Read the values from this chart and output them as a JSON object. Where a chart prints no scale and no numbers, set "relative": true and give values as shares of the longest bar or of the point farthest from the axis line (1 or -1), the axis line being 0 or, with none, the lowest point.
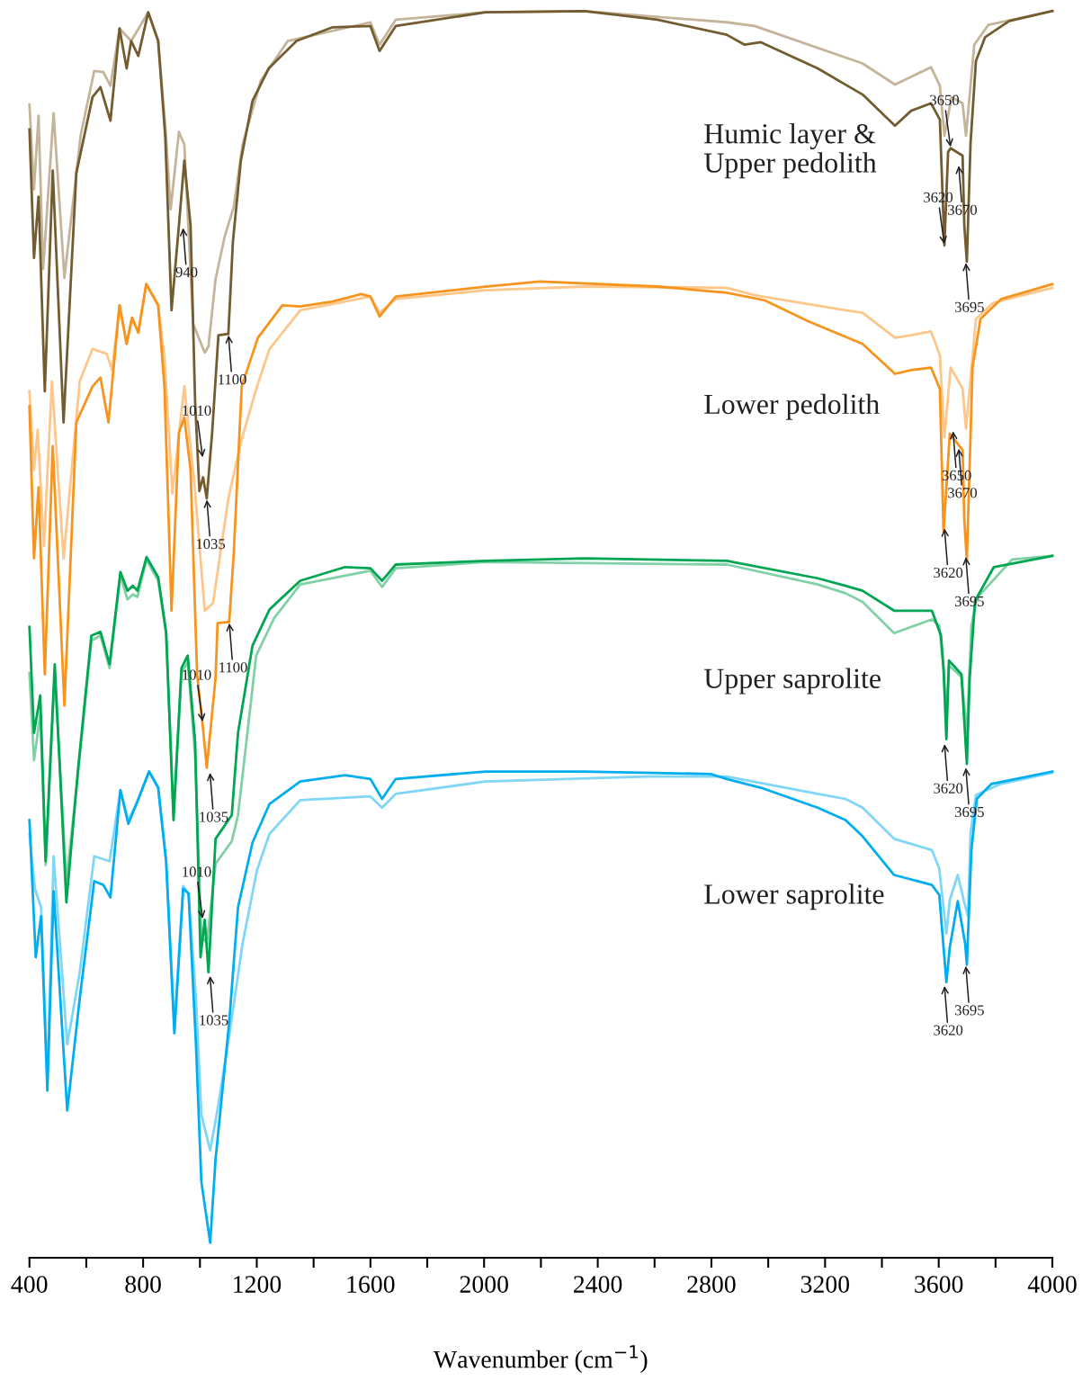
{
  "chart_data": {
    "type": "line",
    "relative": true,
    "xlabel": "Wavenumber (cm$^{−1}$)",
    "xlim": [
      400,
      4000
    ],
    "xticks": [
      400,
      {
        "value": 600,
        "label": null
      },
      800,
      {
        "value": 1000,
        "label": null
      },
      1200,
      {
        "value": 1400,
        "label": null
      },
      1600,
      {
        "value": 1800,
        "label": null
      },
      2000,
      {
        "value": 2200,
        "label": null
      },
      2400,
      {
        "value": 2600,
        "label": null
      },
      2800,
      {
        "value": 3000,
        "label": null
      },
      3200,
      {
        "value": 3400,
        "label": null
      },
      3600,
      {
        "value": 3800,
        "label": null
      },
      4000
    ],
    "grid": false,
    "line_style": "solid",
    "series": [
      {
        "color": "#c4b49a",
        "x": [
          400,
          416,
          432,
          448,
          485,
          523,
          580,
          628,
          660,
          685,
          717,
          758,
          818,
          853,
          878,
          897,
          926,
          945,
          976,
          1017,
          1030,
          1055,
          1087,
          1119,
          1150,
          1214,
          1309,
          1600,
          1632,
          1689,
          2005,
          2354,
          2854,
          2952,
          3332,
          3446,
          3573,
          3604,
          3620,
          3645,
          3684,
          3696,
          3725,
          3775,
          4000
        ],
        "values": [
          0.925,
          0.857,
          0.916,
          0.793,
          0.918,
          0.786,
          0.9,
          0.952,
          0.951,
          0.94,
          0.986,
          0.976,
          0.999,
          0.976,
          0.908,
          0.841,
          0.903,
          0.893,
          0.749,
          0.726,
          0.731,
          0.785,
          0.819,
          0.843,
          0.893,
          0.944,
          0.976,
          0.991,
          0.973,
          0.993,
          0.999,
          1.0,
          0.991,
          0.988,
          0.958,
          0.941,
          0.955,
          0.94,
          0.9,
          0.931,
          0.926,
          0.9,
          0.973,
          0.989,
          1.0
        ]
      },
      {
        "name": "Humic layer &\nUpper pedolith",
        "color": "#725c30",
        "x": [
          400,
          416,
          432,
          454,
          482,
          520,
          565,
          622,
          650,
          685,
          717,
          742,
          758,
          783,
          818,
          853,
          878,
          900,
          926,
          945,
          967,
          983,
          998,
          1011,
          1024,
          1043,
          1065,
          1100,
          1116,
          1144,
          1185,
          1242,
          1340,
          1467,
          1600,
          1632,
          1689,
          2005,
          2354,
          2610,
          2854,
          2917,
          2974,
          3174,
          3332,
          3446,
          3503,
          3573,
          3604,
          3620,
          3633,
          3642,
          3684,
          3690,
          3699,
          3712,
          3731,
          3763,
          3848,
          4000
        ],
        "values": [
          0.905,
          0.802,
          0.851,
          0.695,
          0.872,
          0.67,
          0.87,
          0.931,
          0.939,
          0.912,
          0.986,
          0.954,
          0.976,
          0.964,
          0.999,
          0.976,
          0.899,
          0.76,
          0.828,
          0.88,
          0.828,
          0.687,
          0.615,
          0.626,
          0.609,
          0.662,
          0.74,
          0.741,
          0.815,
          0.88,
          0.928,
          0.954,
          0.976,
          0.987,
          0.988,
          0.968,
          0.988,
          0.999,
          1.0,
          0.993,
          0.981,
          0.973,
          0.975,
          0.954,
          0.933,
          0.908,
          0.92,
          0.926,
          0.913,
          0.812,
          0.887,
          0.89,
          0.884,
          0.828,
          0.799,
          0.894,
          0.96,
          0.979,
          0.992,
          1.0
        ]
      },
      {
        "color": "#fdc68a",
        "x": [
          400,
          416,
          429,
          451,
          479,
          520,
          577,
          622,
          672,
          691,
          717,
          742,
          761,
          783,
          811,
          853,
          875,
          903,
          945,
          980,
          1017,
          1046,
          1100,
          1144,
          1201,
          1245,
          1353,
          1600,
          1632,
          1689,
          2005,
          2354,
          2854,
          2952,
          3272,
          3332,
          3446,
          3503,
          3573,
          3604,
          3620,
          3642,
          3684,
          3696,
          3731,
          3792,
          4000
        ],
        "values": [
          0.695,
          0.632,
          0.664,
          0.571,
          0.703,
          0.561,
          0.703,
          0.729,
          0.725,
          0.712,
          0.764,
          0.733,
          0.754,
          0.742,
          0.781,
          0.764,
          0.722,
          0.613,
          0.699,
          0.622,
          0.519,
          0.525,
          0.609,
          0.654,
          0.699,
          0.729,
          0.76,
          0.771,
          0.758,
          0.769,
          0.776,
          0.779,
          0.778,
          0.772,
          0.76,
          0.758,
          0.738,
          0.74,
          0.743,
          0.724,
          0.658,
          0.714,
          0.697,
          0.665,
          0.753,
          0.766,
          0.778
        ]
      },
      {
        "name": "Lower pedolith",
        "color": "#f7941d",
        "x": [
          400,
          416,
          432,
          454,
          482,
          523,
          565,
          622,
          650,
          678,
          717,
          742,
          761,
          783,
          811,
          853,
          875,
          900,
          926,
          945,
          967,
          990,
          1011,
          1024,
          1055,
          1062,
          1103,
          1119,
          1147,
          1204,
          1290,
          1353,
          1467,
          1568,
          1600,
          1632,
          1689,
          2005,
          2196,
          2610,
          2854,
          2987,
          3142,
          3332,
          3446,
          3503,
          3573,
          3604,
          3617,
          3639,
          3684,
          3690,
          3699,
          3719,
          3747,
          3820,
          4000
        ],
        "values": [
          0.683,
          0.561,
          0.618,
          0.468,
          0.651,
          0.443,
          0.67,
          0.699,
          0.706,
          0.67,
          0.764,
          0.733,
          0.754,
          0.742,
          0.781,
          0.764,
          0.699,
          0.519,
          0.662,
          0.674,
          0.632,
          0.468,
          0.424,
          0.393,
          0.465,
          0.509,
          0.51,
          0.565,
          0.699,
          0.738,
          0.764,
          0.763,
          0.767,
          0.773,
          0.771,
          0.755,
          0.771,
          0.779,
          0.783,
          0.779,
          0.774,
          0.768,
          0.751,
          0.733,
          0.709,
          0.712,
          0.714,
          0.697,
          0.582,
          0.661,
          0.648,
          0.592,
          0.559,
          0.714,
          0.753,
          0.769,
          0.781
        ]
      },
      {
        "color": "#80d1a6",
        "x": [
          400,
          416,
          438,
          457,
          489,
          530,
          571,
          618,
          650,
          682,
          720,
          745,
          764,
          780,
          812,
          853,
          881,
          907,
          935,
          957,
          983,
          1005,
          1024,
          1055,
          1112,
          1134,
          1198,
          1261,
          1353,
          1600,
          1641,
          1689,
          2005,
          2854,
          3174,
          3272,
          3332,
          3443,
          3576,
          3602,
          3617,
          3627,
          3636,
          3680,
          3699,
          3715,
          3734,
          3858,
          4000
        ],
        "values": [
          0.469,
          0.399,
          0.436,
          0.315,
          0.468,
          0.303,
          0.388,
          0.495,
          0.499,
          0.473,
          0.547,
          0.528,
          0.532,
          0.53,
          0.56,
          0.543,
          0.5,
          0.356,
          0.469,
          0.478,
          0.403,
          0.258,
          0.252,
          0.316,
          0.334,
          0.355,
          0.483,
          0.513,
          0.54,
          0.551,
          0.538,
          0.553,
          0.558,
          0.556,
          0.54,
          0.533,
          0.526,
          0.501,
          0.512,
          0.507,
          0.471,
          0.435,
          0.475,
          0.466,
          0.421,
          0.507,
          0.529,
          0.56,
          0.563
        ]
      },
      {
        "name": "Upper saprolite",
        "color": "#00a651",
        "x": [
          400,
          416,
          438,
          457,
          489,
          530,
          571,
          618,
          650,
          682,
          720,
          745,
          764,
          780,
          812,
          853,
          881,
          907,
          935,
          957,
          983,
          1002,
          1017,
          1030,
          1055,
          1112,
          1134,
          1185,
          1245,
          1353,
          1511,
          1600,
          1641,
          1689,
          2005,
          2354,
          2854,
          3174,
          3272,
          3332,
          3443,
          3576,
          3608,
          3617,
          3627,
          3636,
          3680,
          3699,
          3709,
          3728,
          3794,
          4000
        ],
        "values": [
          0.506,
          0.421,
          0.451,
          0.318,
          0.476,
          0.285,
          0.392,
          0.499,
          0.502,
          0.476,
          0.55,
          0.535,
          0.539,
          0.535,
          0.562,
          0.546,
          0.502,
          0.351,
          0.473,
          0.483,
          0.414,
          0.241,
          0.271,
          0.229,
          0.336,
          0.355,
          0.421,
          0.491,
          0.52,
          0.543,
          0.554,
          0.553,
          0.543,
          0.556,
          0.559,
          0.561,
          0.559,
          0.545,
          0.539,
          0.535,
          0.519,
          0.519,
          0.499,
          0.473,
          0.416,
          0.479,
          0.468,
          0.396,
          0.465,
          0.527,
          0.554,
          0.563
        ]
      },
      {
        "color": "#80d6f7",
        "x": [
          400,
          419,
          441,
          463,
          485,
          533,
          577,
          628,
          682,
          720,
          748,
          780,
          821,
          853,
          881,
          910,
          941,
          960,
          986,
          1005,
          1036,
          1062,
          1103,
          1150,
          1201,
          1245,
          1353,
          1600,
          1641,
          1689,
          2005,
          2574,
          2854,
          3174,
          3272,
          3332,
          3443,
          3576,
          3602,
          3627,
          3639,
          3667,
          3690,
          3703,
          3712,
          3731,
          3817,
          4000
        ],
        "values": [
          0.34,
          0.296,
          0.281,
          0.141,
          0.322,
          0.171,
          0.229,
          0.322,
          0.318,
          0.375,
          0.351,
          0.366,
          0.39,
          0.377,
          0.318,
          0.185,
          0.298,
          0.292,
          0.208,
          0.115,
          0.086,
          0.119,
          0.178,
          0.252,
          0.311,
          0.34,
          0.367,
          0.37,
          0.361,
          0.372,
          0.382,
          0.386,
          0.386,
          0.372,
          0.368,
          0.361,
          0.336,
          0.327,
          0.312,
          0.26,
          0.287,
          0.307,
          0.285,
          0.274,
          0.341,
          0.371,
          0.38,
          0.389
        ]
      },
      {
        "name": "Lower saprolite",
        "color": "#00aeef",
        "x": [
          400,
          422,
          441,
          463,
          485,
          533,
          577,
          628,
          660,
          685,
          720,
          748,
          780,
          821,
          853,
          881,
          910,
          941,
          960,
          986,
          1005,
          1036,
          1055,
          1103,
          1134,
          1185,
          1245,
          1353,
          1511,
          1600,
          1641,
          1689,
          2005,
          2354,
          2797,
          2854,
          2974,
          3174,
          3272,
          3332,
          3443,
          3576,
          3602,
          3617,
          3627,
          3639,
          3667,
          3693,
          3699,
          3715,
          3734,
          3785,
          4000
        ],
        "values": [
          0.351,
          0.241,
          0.274,
          0.134,
          0.294,
          0.118,
          0.208,
          0.302,
          0.299,
          0.289,
          0.375,
          0.348,
          0.366,
          0.39,
          0.377,
          0.318,
          0.18,
          0.296,
          0.292,
          0.171,
          0.061,
          0.012,
          0.079,
          0.189,
          0.281,
          0.333,
          0.364,
          0.382,
          0.387,
          0.384,
          0.368,
          0.384,
          0.39,
          0.39,
          0.388,
          0.384,
          0.377,
          0.361,
          0.351,
          0.338,
          0.307,
          0.299,
          0.291,
          0.249,
          0.221,
          0.249,
          0.286,
          0.252,
          0.235,
          0.327,
          0.368,
          0.38,
          0.39
        ]
      }
    ],
    "annotations": [
      {
        "text": "940",
        "x": 940,
        "y": 0.827
      },
      {
        "text": "1010",
        "x": 1010,
        "y": 0.641
      },
      {
        "text": "1035",
        "x": 1024,
        "y": 0.609
      },
      {
        "text": "1100",
        "x": 1100,
        "y": 0.741
      },
      {
        "text": "3620",
        "x": 3620,
        "y": 0.812
      },
      {
        "text": "3650",
        "x": 3642,
        "y": 0.89
      },
      {
        "text": "3670",
        "x": 3670,
        "y": 0.877
      },
      {
        "text": "3695",
        "x": 3695,
        "y": 0.799
      },
      {
        "text": "1010",
        "x": 1010,
        "y": 0.429
      },
      {
        "text": "1035",
        "x": 1035,
        "y": 0.39
      },
      {
        "text": "1100",
        "x": 1103,
        "y": 0.51
      },
      {
        "text": "3620",
        "x": 3620,
        "y": 0.586
      },
      {
        "text": "3650",
        "x": 3650,
        "y": 0.664
      },
      {
        "text": "3670",
        "x": 3670,
        "y": 0.65
      },
      {
        "text": "3695",
        "x": 3695,
        "y": 0.563
      },
      {
        "text": "1010",
        "x": 1010,
        "y": 0.271
      },
      {
        "text": "1035",
        "x": 1035,
        "y": 0.227
      },
      {
        "text": "3620",
        "x": 3620,
        "y": 0.413
      },
      {
        "text": "3695",
        "x": 3695,
        "y": 0.394
      },
      {
        "text": "3620",
        "x": 3620,
        "y": 0.219
      },
      {
        "text": "3695",
        "x": 3695,
        "y": 0.235
      }
    ]
  }
}
